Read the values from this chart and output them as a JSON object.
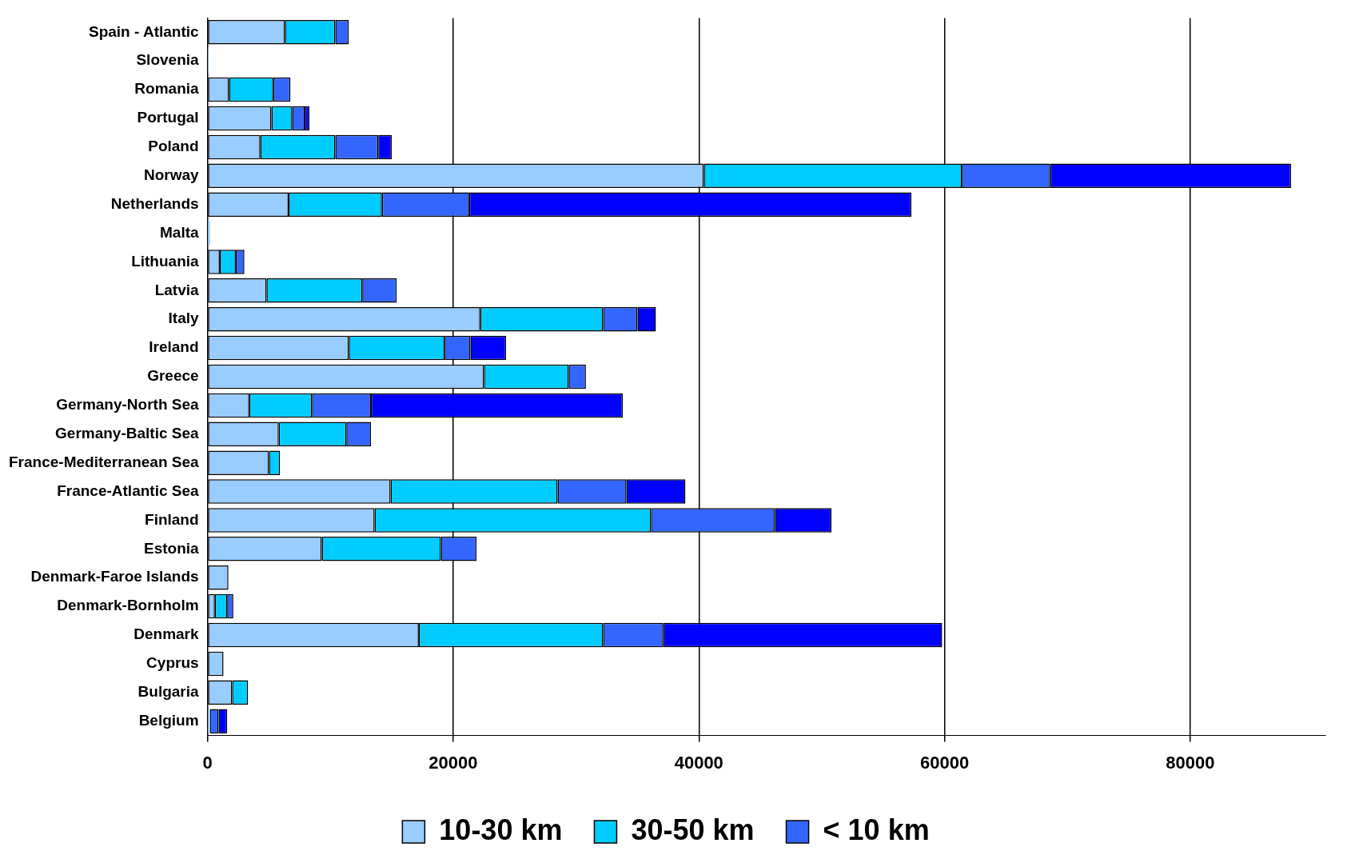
{
  "chart_data": {
    "type": "bar",
    "orientation": "horizontal",
    "stacked": true,
    "categories": [
      "Spain - Atlantic",
      "Slovenia",
      "Romania",
      "Portugal",
      "Poland",
      "Norway",
      "Netherlands",
      "Malta",
      "Lithuania",
      "Latvia",
      "Italy",
      "Ireland",
      "Greece",
      "Germany-North Sea",
      "Germany-Baltic Sea",
      "France-Mediterranean Sea",
      "France-Atlantic Sea",
      "Finland",
      "Estonia",
      "Denmark-Faroe Islands",
      "Denmark-Bornholm",
      "Denmark",
      "Cyprus",
      "Bulgaria",
      "Belgium"
    ],
    "series": [
      {
        "name": "10-30 km",
        "color": "#99ccff",
        "values": [
          6300,
          100,
          1750,
          5200,
          4300,
          40400,
          6600,
          200,
          1000,
          4800,
          22200,
          11500,
          22500,
          3400,
          5800,
          5000,
          14900,
          13600,
          9300,
          1700,
          600,
          17200,
          1300,
          2000,
          200
        ]
      },
      {
        "name": "30-50 km",
        "color": "#00ccff",
        "values": [
          4100,
          null,
          3600,
          1700,
          6100,
          21000,
          7600,
          null,
          1300,
          7800,
          10000,
          7800,
          6900,
          5100,
          5500,
          900,
          13600,
          22500,
          9700,
          null,
          1000,
          15000,
          null,
          1300,
          null
        ]
      },
      {
        "name": "< 10 km",
        "color": "#3366ff",
        "values": [
          1100,
          null,
          1400,
          1000,
          3500,
          7200,
          7100,
          null,
          700,
          2800,
          2800,
          2100,
          1400,
          4800,
          2000,
          null,
          5600,
          10100,
          2900,
          null,
          500,
          4900,
          null,
          null,
          700
        ]
      },
      {
        "color": "#0000ff",
        "values": [
          null,
          null,
          null,
          400,
          1100,
          19600,
          36000,
          null,
          null,
          null,
          1500,
          2900,
          null,
          20500,
          null,
          null,
          4800,
          4600,
          null,
          null,
          null,
          22700,
          null,
          null,
          700
        ]
      }
    ],
    "xlim": [
      0,
      91000
    ],
    "xticks": [
      0,
      20000,
      40000,
      60000,
      80000
    ],
    "grid": "x",
    "legend": "bottom"
  }
}
